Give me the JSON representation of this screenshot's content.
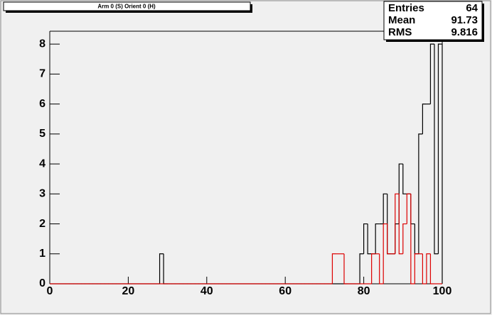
{
  "chart_data": {
    "type": "histogram",
    "title": "Arm 0 (S) Orient 0 (H)",
    "stats": [
      {
        "label": "Entries",
        "value": "64"
      },
      {
        "label": "Mean",
        "value": "91.73"
      },
      {
        "label": "RMS",
        "value": "9.816"
      }
    ],
    "bins": [
      0,
      1,
      2,
      3,
      4,
      5,
      6,
      7,
      8,
      9,
      10,
      11,
      12,
      13,
      14,
      15,
      16,
      17,
      18,
      19,
      20,
      21,
      22,
      23,
      24,
      25,
      26,
      27,
      28,
      29,
      30,
      31,
      32,
      33,
      34,
      35,
      36,
      37,
      38,
      39,
      40,
      41,
      42,
      43,
      44,
      45,
      46,
      47,
      48,
      49,
      50,
      51,
      52,
      53,
      54,
      55,
      56,
      57,
      58,
      59,
      60,
      61,
      62,
      63,
      64,
      65,
      66,
      67,
      68,
      69,
      70,
      71,
      72,
      73,
      74,
      75,
      76,
      77,
      78,
      79,
      80,
      81,
      82,
      83,
      84,
      85,
      86,
      87,
      88,
      89,
      90,
      91,
      92,
      93,
      94,
      95,
      96,
      97,
      98,
      99,
      100
    ],
    "series": [
      {
        "color": "#000000",
        "values": [
          0,
          0,
          0,
          0,
          0,
          0,
          0,
          0,
          0,
          0,
          0,
          0,
          0,
          0,
          0,
          0,
          0,
          0,
          0,
          0,
          0,
          0,
          0,
          0,
          0,
          0,
          0,
          0,
          1,
          0,
          0,
          0,
          0,
          0,
          0,
          0,
          0,
          0,
          0,
          0,
          0,
          0,
          0,
          0,
          0,
          0,
          0,
          0,
          0,
          0,
          0,
          0,
          0,
          0,
          0,
          0,
          0,
          0,
          0,
          0,
          0,
          0,
          0,
          0,
          0,
          0,
          0,
          0,
          0,
          0,
          0,
          0,
          0,
          0,
          0,
          0,
          0,
          0,
          0,
          1,
          2,
          1,
          1,
          2,
          2,
          3,
          1,
          1,
          2,
          4,
          3,
          3,
          2,
          1,
          5,
          6,
          6,
          8,
          1,
          8
        ]
      },
      {
        "color": "#dd0000",
        "values": [
          0,
          0,
          0,
          0,
          0,
          0,
          0,
          0,
          0,
          0,
          0,
          0,
          0,
          0,
          0,
          0,
          0,
          0,
          0,
          0,
          0,
          0,
          0,
          0,
          0,
          0,
          0,
          0,
          0,
          0,
          0,
          0,
          0,
          0,
          0,
          0,
          0,
          0,
          0,
          0,
          0,
          0,
          0,
          0,
          0,
          0,
          0,
          0,
          0,
          0,
          0,
          0,
          0,
          0,
          0,
          0,
          0,
          0,
          0,
          0,
          0,
          0,
          0,
          0,
          0,
          0,
          0,
          0,
          0,
          0,
          0,
          0,
          1,
          1,
          1,
          0,
          0,
          0,
          0,
          0,
          0,
          0,
          1,
          1,
          0,
          2,
          1,
          1,
          3,
          1,
          2,
          3,
          0,
          1,
          1,
          0,
          1,
          0,
          0,
          0
        ]
      }
    ],
    "xlim": [
      0,
      100
    ],
    "ylim": [
      0,
      8.43
    ],
    "xticks": [
      0,
      20,
      40,
      60,
      80,
      100
    ],
    "yticks": [
      0,
      1,
      2,
      3,
      4,
      5,
      6,
      7,
      8
    ]
  }
}
